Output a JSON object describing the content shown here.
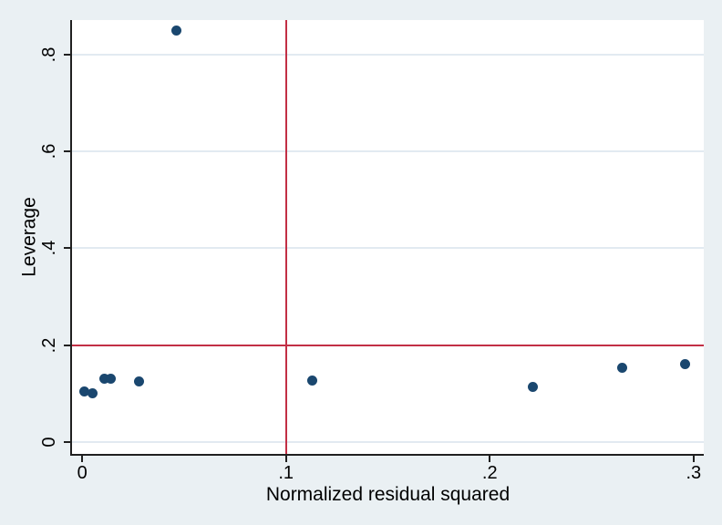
{
  "figure": {
    "background_color": "#eaf0f3",
    "plot_background_color": "#ffffff",
    "grid_color": "#e2eaf1",
    "axis_color": "#202020",
    "text_color": "#000000"
  },
  "chart_data": {
    "type": "scatter",
    "title": "",
    "xlabel": "Normalized residual squared",
    "ylabel": "Leverage",
    "xlim": [
      -0.005,
      0.305
    ],
    "ylim": [
      -0.025,
      0.872
    ],
    "grid": "horizontal-only",
    "legend": "none",
    "x_ticks": {
      "values": [
        0,
        0.1,
        0.2,
        0.3
      ],
      "labels": [
        "0",
        ".1",
        ".2",
        ".3"
      ]
    },
    "y_ticks": {
      "values": [
        0,
        0.2,
        0.4,
        0.6,
        0.8
      ],
      "labels": [
        "0",
        ".2",
        ".4",
        ".6",
        ".8"
      ]
    },
    "marker_color": "#1a476f",
    "marker_size_px": 11,
    "points": [
      {
        "x": 0.001,
        "y": 0.105
      },
      {
        "x": 0.005,
        "y": 0.1
      },
      {
        "x": 0.011,
        "y": 0.13
      },
      {
        "x": 0.014,
        "y": 0.131
      },
      {
        "x": 0.028,
        "y": 0.125
      },
      {
        "x": 0.046,
        "y": 0.851
      },
      {
        "x": 0.113,
        "y": 0.126
      },
      {
        "x": 0.221,
        "y": 0.113
      },
      {
        "x": 0.265,
        "y": 0.153
      },
      {
        "x": 0.296,
        "y": 0.16
      }
    ],
    "reference_lines": {
      "vertical_x": 0.1,
      "horizontal_y": 0.2,
      "color": "#c22f45"
    }
  }
}
